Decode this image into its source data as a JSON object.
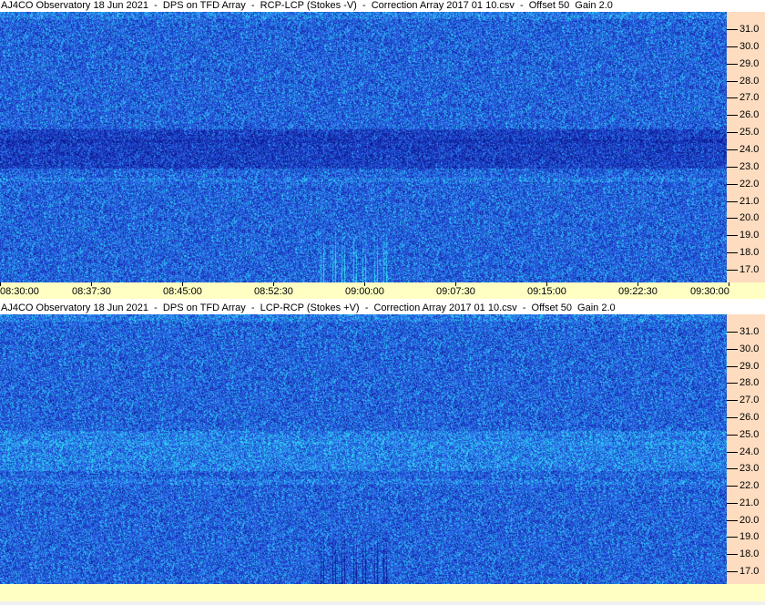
{
  "panels": [
    {
      "title": "AJ4CO Observatory 18 Jun 2021  -  DPS on TFD Array  -  RCP-LCP (Stokes -V)  -  Correction Array 2017 01 10.csv  -  Offset 50  Gain 2.0",
      "show_time_axis": true
    },
    {
      "title": "AJ4CO Observatory 18 Jun 2021  -  DPS on TFD Array  -  LCP-RCP (Stokes +V)  -  Correction Array 2017 01 10.csv  -  Offset 50  Gain 2.0",
      "show_time_axis": false
    }
  ],
  "chart_data": {
    "type": "heatmap",
    "y_axis": {
      "position": "right",
      "range": [
        16.3,
        32.0
      ],
      "ticks": [
        "17.0",
        "18.0",
        "19.0",
        "20.0",
        "21.0",
        "22.0",
        "23.0",
        "24.0",
        "25.0",
        "26.0",
        "27.0",
        "28.0",
        "29.0",
        "30.0",
        "31.0"
      ]
    },
    "x_axis": {
      "range": [
        "08:30:00",
        "09:30:00"
      ],
      "ticks": [
        "08:30:00",
        "08:37:30",
        "08:45:00",
        "08:52:30",
        "09:00:00",
        "09:07:30",
        "09:15:00",
        "09:22:30",
        "09:30:00"
      ]
    },
    "colors": {
      "base": "#2a5ae6",
      "high": "#40e0f0",
      "low": "#0a1a90",
      "y_axis_bg": "#fddcbf",
      "x_axis_bg": "#ffffc4"
    }
  }
}
